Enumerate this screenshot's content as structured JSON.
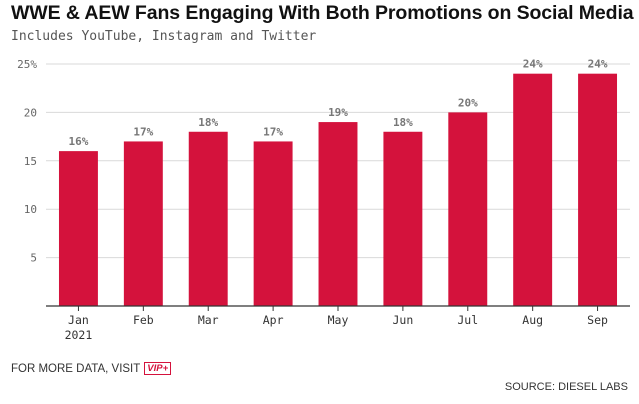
{
  "title": "WWE & AEW Fans Engaging With Both Promotions on Social Media",
  "subtitle": "Includes YouTube, Instagram and Twitter",
  "footer": {
    "more_data_text": "FOR MORE DATA, VISIT",
    "vip_label": "VIP+",
    "source": "SOURCE: DIESEL LABS"
  },
  "colors": {
    "bar": "#d4123c",
    "grid": "#d9d9d9",
    "axis": "#333333",
    "label": "#666666"
  },
  "chart_data": {
    "type": "bar",
    "categories": [
      "Jan",
      "Feb",
      "Mar",
      "Apr",
      "May",
      "Jun",
      "Jul",
      "Aug",
      "Sep"
    ],
    "category_sublabels": [
      "2021",
      "",
      "",
      "",
      "",
      "",
      "",
      "",
      ""
    ],
    "values": [
      16,
      17,
      18,
      17,
      19,
      18,
      20,
      24,
      24
    ],
    "data_labels": [
      "16%",
      "17%",
      "18%",
      "17%",
      "19%",
      "18%",
      "20%",
      "24%",
      "24%"
    ],
    "y_ticks": [
      5,
      10,
      15,
      20,
      25
    ],
    "y_tick_labels": [
      "5",
      "10",
      "15",
      "20",
      "25%"
    ],
    "ylim": [
      0,
      25
    ],
    "grid": true,
    "xlabel": "",
    "ylabel": ""
  }
}
